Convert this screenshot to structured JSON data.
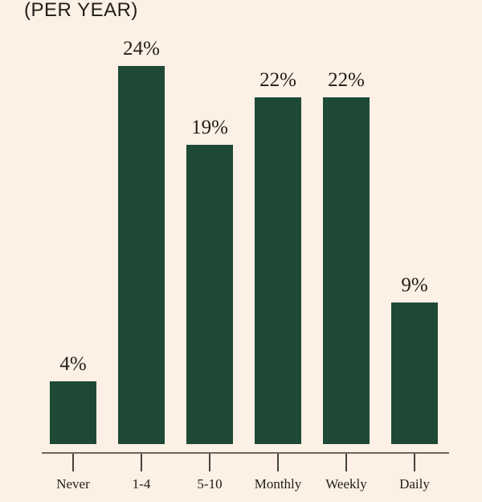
{
  "title": "(PER YEAR)",
  "colors": {
    "background": "#fdf0e5",
    "bar": "#1e4936",
    "text": "#211d18",
    "axis_line": "#6f675d",
    "tick": "#48423b"
  },
  "chart_data": {
    "type": "bar",
    "title": "(PER YEAR)",
    "categories": [
      "Never",
      "1-4",
      "5-10",
      "Monthly",
      "Weekly",
      "Daily"
    ],
    "values": [
      4,
      24,
      19,
      22,
      22,
      9
    ],
    "value_labels": [
      "4%",
      "24%",
      "19%",
      "22%",
      "22%",
      "9%"
    ],
    "unit": "%",
    "xlabel": "",
    "ylabel": "",
    "ylim": [
      0,
      25
    ],
    "grid": false,
    "legend": "none",
    "value_labels_position": "above-bars",
    "axis": "x-only"
  }
}
